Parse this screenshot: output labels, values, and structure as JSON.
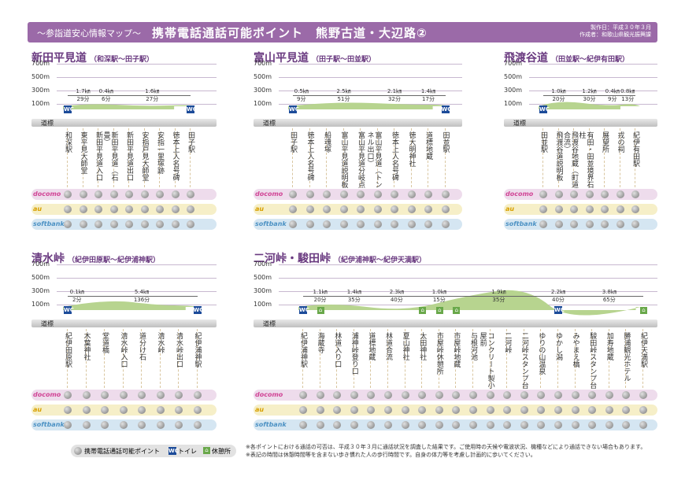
{
  "header": {
    "subtitle": "〜参詣道安心情報マップ〜",
    "title": "携帯電話通話可能ポイント　熊野古道・大辺路②",
    "meta": [
      "製作日：平成３０年３月",
      "作成者：和歌山県観光振興課"
    ]
  },
  "y_axis": [
    "700m",
    "500m",
    "300m",
    "100m"
  ],
  "road_label": "道標",
  "carriers": [
    "docomo",
    "au",
    "softbank"
  ],
  "panels": [
    {
      "title": "新田平見道",
      "sub": "（和深駅〜田子駅）",
      "segments": [
        {
          "d": "1.7㎞",
          "t": "29分"
        },
        {
          "d": "0.4㎞",
          "t": "6分"
        },
        {
          "d": "1.6㎞",
          "t": "27分"
        }
      ],
      "places": [
        "和深駅",
        "東平見大師堂",
        "新田平見道入口",
        "新田平見道（石畳）",
        "新田平見道出口",
        "安指戸見大師堂",
        "安指一里塚跡",
        "徳本上人名号碑",
        "田子駅"
      ]
    },
    {
      "title": "富山平見道",
      "sub": "（田子駅〜田並駅）",
      "segments": [
        {
          "d": "0.5㎞",
          "t": "9分"
        },
        {
          "d": "2.5㎞",
          "t": "51分"
        },
        {
          "d": "2.1㎞",
          "t": "32分"
        },
        {
          "d": "1.4㎞",
          "t": "17分"
        }
      ],
      "places": [
        "田子駅",
        "徳本上人名号碑",
        "船魂塚",
        "富山平見道説明板",
        "富山平見道分岐点",
        "富山平見道（トンネル出口）",
        "徳本上人名号碑",
        "徳大明神社",
        "道標地蔵",
        "田並駅"
      ]
    },
    {
      "title": "飛渡谷道",
      "sub": "（田並駅〜紀伊有田駅）",
      "segments": [
        {
          "d": "1.0㎞",
          "t": "20分"
        },
        {
          "d": "1.2㎞",
          "t": "30分"
        },
        {
          "d": "0.4㎞",
          "t": "9分"
        },
        {
          "d": "0.8㎞",
          "t": "13分"
        }
      ],
      "places": [
        "田並駅",
        "飛渡谷道説明板",
        "飛渡谷地蔵（町道合流）",
        "有田・田並境界石柱",
        "展望所",
        "戎の祠",
        "紀伊有田駅"
      ]
    },
    {
      "title": "清水峠",
      "sub": "（紀伊田原駅〜紀伊浦神駅）",
      "segments": [
        {
          "d": "0.1㎞",
          "t": "2分"
        },
        {
          "d": "5.4㎞",
          "t": "136分"
        }
      ],
      "places": [
        "紀伊田原駅",
        "木葉神社",
        "堂道橋",
        "清水峠入口",
        "道分け石",
        "清水峠",
        "清水峠出口",
        "紀伊浦神駅"
      ]
    },
    {
      "title": "二河峠・駿田峠",
      "sub": "（紀伊浦神駅〜紀伊天満駅）",
      "segments": [
        {
          "d": "1.1㎞",
          "t": "20分"
        },
        {
          "d": "1.4㎞",
          "t": "35分"
        },
        {
          "d": "2.3㎞",
          "t": "40分"
        },
        {
          "d": "1.0㎞",
          "t": "15分"
        },
        {
          "d": "1.9㎞",
          "t": "35分"
        },
        {
          "d": "2.2㎞",
          "t": "40分"
        },
        {
          "d": "3.8㎞",
          "t": "65分"
        }
      ],
      "places": [
        "紀伊浦神駅",
        "海蔵寺",
        "林道入り口",
        "浦神峠登り口",
        "道標地蔵",
        "林道合流",
        "夏山神社",
        "太田神社",
        "市屋峠休憩所",
        "市屋峠地蔵",
        "与根河池",
        "コンクリート製小屋前",
        "二河峠",
        "二河峠スタンプ台",
        "ゆりの山温泉",
        "ゆかし潟",
        "みやまえ橋",
        "駿田峠スタンプ台",
        "加寿地蔵",
        "勝浦観光ホテル",
        "紀伊天満駅"
      ]
    }
  ],
  "legend": {
    "phone": "携帯電話通話可能ポイント",
    "toilet": "トイレ",
    "rest": "休憩所"
  },
  "notes": [
    "※各ポイントにおける通話の可否は、平成３０年３月に通話状況を調査した結果です。ご使用時の天候や電波状況、機種などにより通話できない場合もあります。",
    "※表記の時間は休憩時間等を含まない歩き慣れた人の歩行時間です。自身の体力等を考慮し計画的に歩いてください。"
  ]
}
